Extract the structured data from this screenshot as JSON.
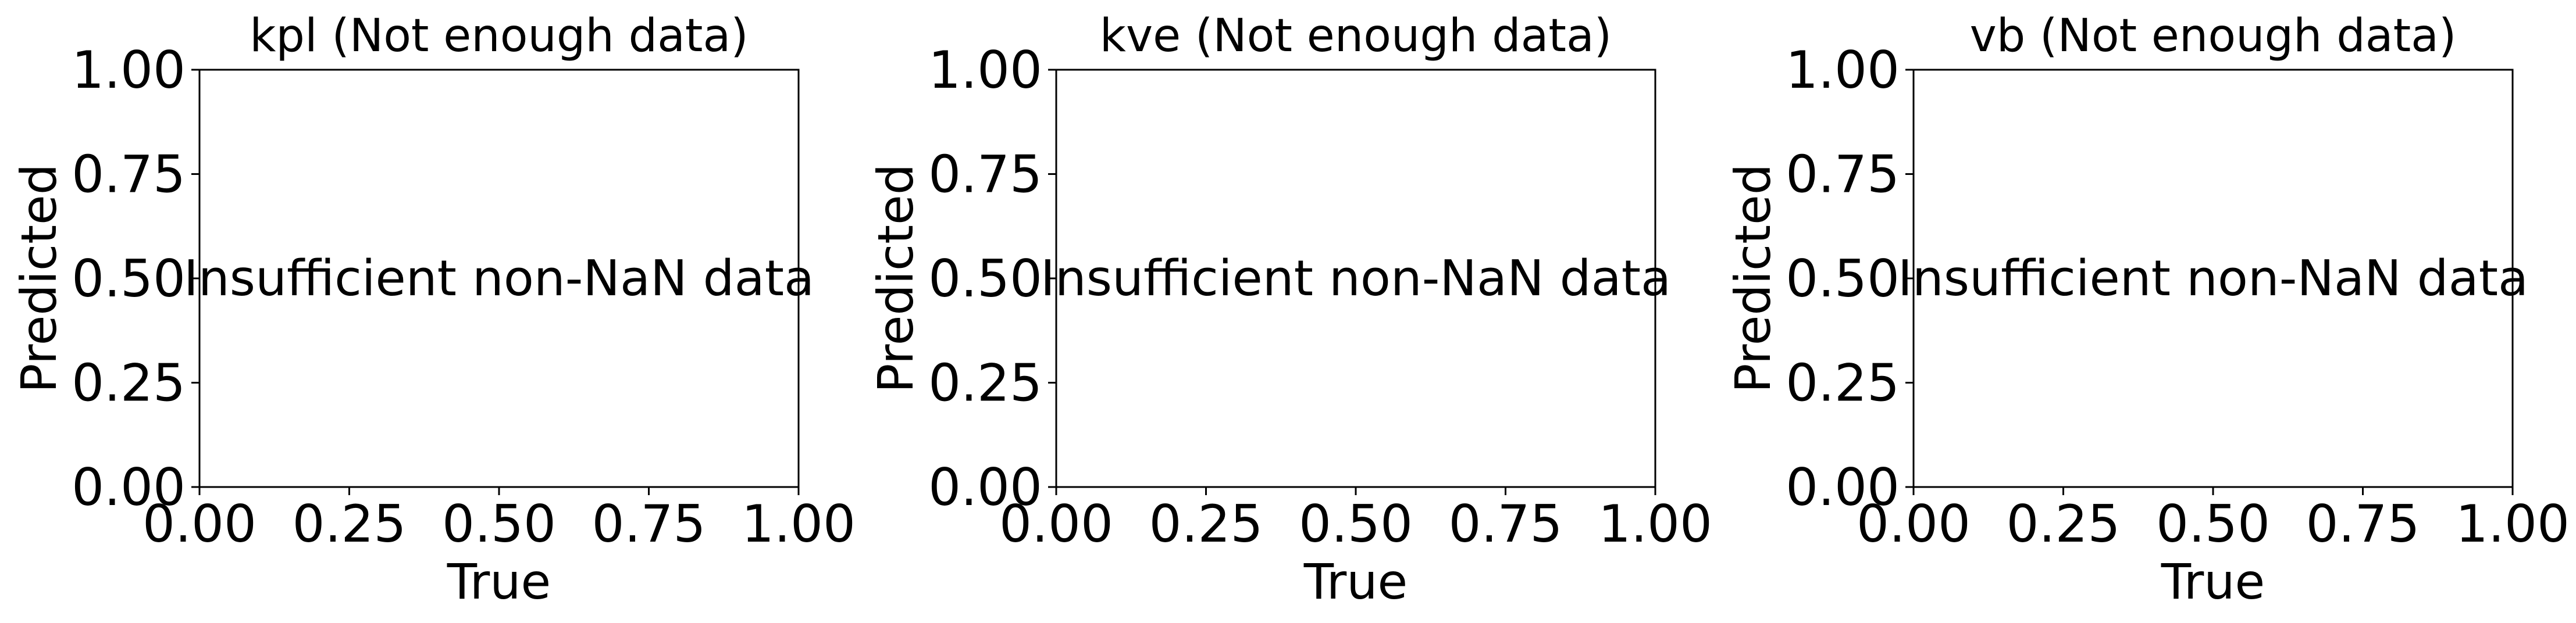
{
  "chart_data": [
    {
      "type": "scatter",
      "title": "kpl (Not enough data)",
      "xlabel": "True",
      "ylabel": "Predicted",
      "xlim": [
        0,
        1
      ],
      "ylim": [
        0,
        1
      ],
      "x_ticks": [
        "0.00",
        "0.25",
        "0.50",
        "0.75",
        "1.00"
      ],
      "y_ticks": [
        "0.00",
        "0.25",
        "0.50",
        "0.75",
        "1.00"
      ],
      "series": [],
      "annotation": "Insufficient non-NaN data",
      "grid": false
    },
    {
      "type": "scatter",
      "title": "kve (Not enough data)",
      "xlabel": "True",
      "ylabel": "Predicted",
      "xlim": [
        0,
        1
      ],
      "ylim": [
        0,
        1
      ],
      "x_ticks": [
        "0.00",
        "0.25",
        "0.50",
        "0.75",
        "1.00"
      ],
      "y_ticks": [
        "0.00",
        "0.25",
        "0.50",
        "0.75",
        "1.00"
      ],
      "series": [],
      "annotation": "Insufficient non-NaN data",
      "grid": false
    },
    {
      "type": "scatter",
      "title": "vb (Not enough data)",
      "xlabel": "True",
      "ylabel": "Predicted",
      "xlim": [
        0,
        1
      ],
      "ylim": [
        0,
        1
      ],
      "x_ticks": [
        "0.00",
        "0.25",
        "0.50",
        "0.75",
        "1.00"
      ],
      "y_ticks": [
        "0.00",
        "0.25",
        "0.50",
        "0.75",
        "1.00"
      ],
      "series": [],
      "annotation": "Insufficient non-NaN data",
      "grid": false
    }
  ]
}
